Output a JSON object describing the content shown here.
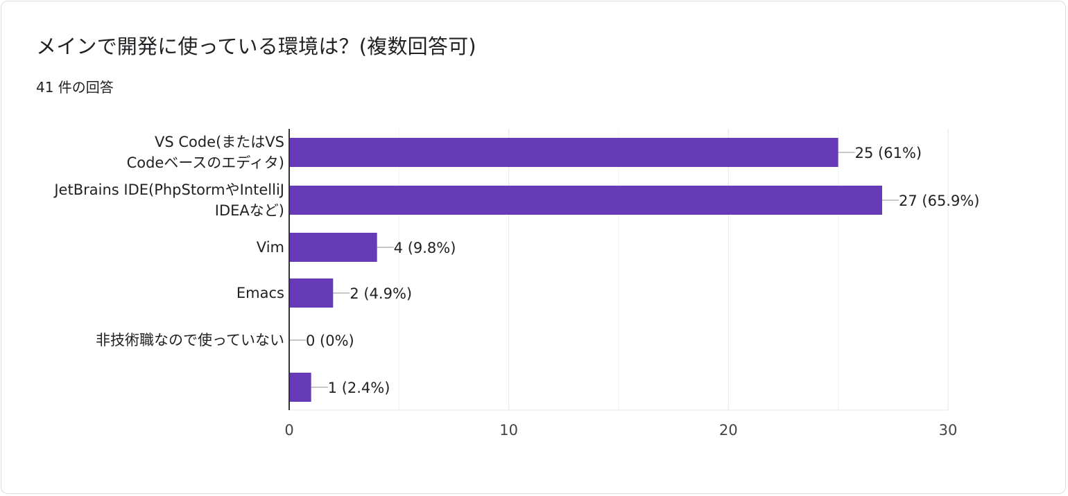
{
  "header": {
    "title": "メインで開発に使っている環境は？(複数回答可)",
    "response_count": "41 件の回答"
  },
  "chart_data": {
    "type": "bar",
    "orientation": "horizontal",
    "categories": [
      [
        "VS Code(またはVS",
        "Codeベースのエディタ)"
      ],
      [
        "JetBrains IDE(PhpStormやIntelliJ",
        "IDEAなど)"
      ],
      [
        "Vim"
      ],
      [
        "Emacs"
      ],
      [
        "非技術職なので使っていない"
      ],
      [
        ""
      ]
    ],
    "values": [
      25,
      27,
      4,
      2,
      0,
      1
    ],
    "data_labels": [
      "25 (61%)",
      "27 (65.9%)",
      "4 (9.8%)",
      "2 (4.9%)",
      "0 (0%)",
      "1 (2.4%)"
    ],
    "xlim": [
      0,
      30
    ],
    "x_ticks": [
      0,
      10,
      20,
      30
    ],
    "grid": true,
    "legend": "none",
    "bar_color": "#673ab7"
  }
}
